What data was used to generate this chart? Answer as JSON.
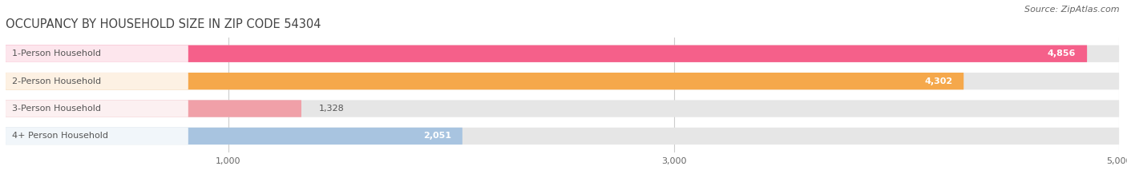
{
  "title": "OCCUPANCY BY HOUSEHOLD SIZE IN ZIP CODE 54304",
  "source": "Source: ZipAtlas.com",
  "categories": [
    "1-Person Household",
    "2-Person Household",
    "3-Person Household",
    "4+ Person Household"
  ],
  "values": [
    4856,
    4302,
    1328,
    2051
  ],
  "bar_colors": [
    "#F5608A",
    "#F5A84B",
    "#F0A0A8",
    "#A8C4E0"
  ],
  "bar_bg_color": "#E2E2E2",
  "xlim": [
    0,
    5000
  ],
  "xticks": [
    1000,
    3000,
    5000
  ],
  "title_fontsize": 10.5,
  "source_fontsize": 8,
  "label_fontsize": 8,
  "value_fontsize": 8,
  "background_color": "#FFFFFF",
  "bar_bg_full": "#E6E6E6",
  "label_box_color": "#FFFFFF",
  "grid_color": "#CCCCCC"
}
